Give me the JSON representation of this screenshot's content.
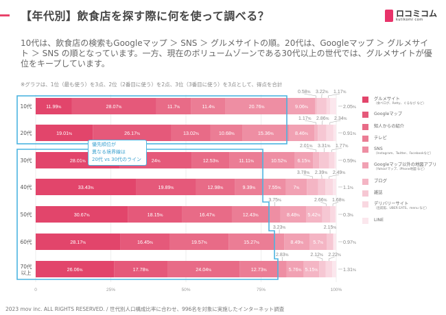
{
  "header": {
    "title": "【年代別】飲食店を探す際に何を使って調べる？",
    "logo_text": "ロコミコム",
    "logo_sub": "kutikomi com"
  },
  "description": "10代は、飲食店の検索もGoogleマップ ＞ SNS ＞ グルメサイトの順。20代は、Googleマップ ＞ グルメサイト ＞ SNS の順となっています。一方、現在のボリュームゾーンである30代以上の世代では、グルメサイトが優位をキープしています。",
  "note": "※グラフは、1位（最も使う）を3点、2位（2番目に使う）を2点、3位（3番目に使う）を3点として、得点を合計",
  "callout": {
    "line1": "優先順位が",
    "line2": "異なる境界線は",
    "line3": "20代 vs 30代のライン"
  },
  "footer": "2023 mov inc. ALL RIGHTS RESERVED. / 世代別人口構成比率に合わせ、996名を対象に実施したインターネット調査",
  "highlight_color": "#4ab3e0",
  "chart_data": {
    "type": "bar",
    "orientation": "horizontal",
    "stacked": true,
    "unit": "%",
    "xlim": [
      0,
      100
    ],
    "xticks": [
      "0",
      "25%",
      "50%",
      "75%",
      "100%"
    ],
    "grid": true,
    "legend_position": "right",
    "categories": [
      "10代",
      "20代",
      "30代",
      "40代",
      "50代",
      "60代",
      "70代以上"
    ],
    "series": [
      {
        "name": "グルメサイト",
        "sub": "（食べログ、Retty、ぐるなび など）",
        "color": "#e2456b",
        "values": [
          11.99,
          19.01,
          28.01,
          33.43,
          30.67,
          28.17,
          26.06
        ]
      },
      {
        "name": "Googleマップ",
        "sub": "",
        "color": "#e5597a",
        "values": [
          28.07,
          26.17,
          24,
          19.89,
          18.15,
          16.45,
          17.78
        ]
      },
      {
        "name": "知人からの紹介",
        "sub": "",
        "color": "#e86b87",
        "values": [
          11.7,
          13.02,
          12.53,
          12.98,
          16.47,
          19.57,
          24.04
        ]
      },
      {
        "name": "テレビ",
        "sub": "",
        "color": "#eb7d95",
        "values": [
          11.4,
          10.68,
          11.11,
          9.39,
          12.43,
          15.27,
          12.73
        ]
      },
      {
        "name": "SNS",
        "sub": "（Instagram、Twitter、Facebookなど）",
        "color": "#ee8ea3",
        "values": [
          20.76,
          15.36,
          10.52,
          7.55,
          3.75,
          3.23,
          2.83
        ]
      },
      {
        "name": "Googleマップ以外の地図アプリ",
        "sub": "（Yahoo!マップ、iPhone地図 など）",
        "color": "#f1a1b3",
        "values": [
          9.06,
          8.46,
          6.15,
          7,
          8.48,
          8.49,
          5.76
        ]
      },
      {
        "name": "ブログ",
        "sub": "",
        "color": "#f4b5c4",
        "values": [
          0.58,
          1.17,
          2.01,
          3.78,
          5.42,
          5.7,
          5.15
        ]
      },
      {
        "name": "雑誌",
        "sub": "",
        "color": "#f6c7d3",
        "values": [
          3.22,
          2.86,
          3.31,
          2.39,
          2.66,
          2.15,
          2.12
        ]
      },
      {
        "name": "デリバリーサイト",
        "sub": "（出前館、UBER EATS、menu など）",
        "color": "#f9d8e1",
        "values": [
          1.17,
          2.34,
          1.77,
          2.49,
          1.68,
          0,
          2.22
        ]
      },
      {
        "name": "LINE",
        "sub": "",
        "color": "#fbe7ed",
        "values": [
          2.05,
          0.91,
          0.59,
          1.1,
          0.3,
          0.97,
          1.31
        ]
      }
    ]
  }
}
